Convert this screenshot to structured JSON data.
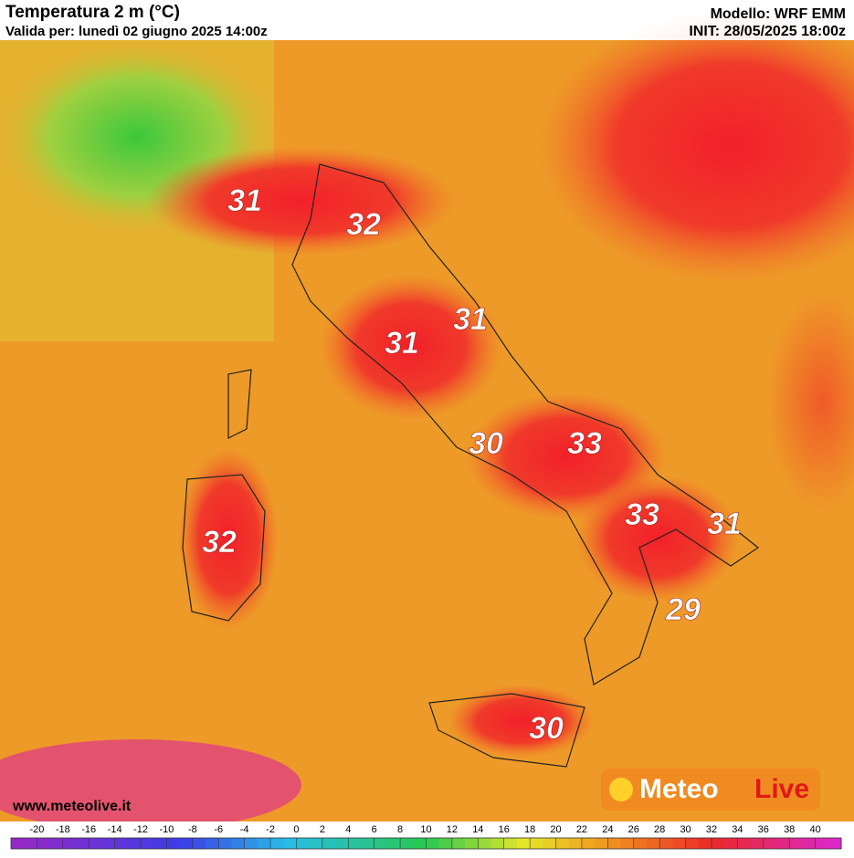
{
  "header": {
    "title": "Temperatura 2 m (°C)",
    "valid": "Valida per: lunedì 02 giugno 2025 14:00z",
    "model": "Modello: WRF EMM",
    "init": "INIT: 28/05/2025 18:00z"
  },
  "map": {
    "labels": [
      "31",
      "32",
      "31",
      "31",
      "30",
      "33",
      "33",
      "31",
      "32",
      "29",
      "30"
    ]
  },
  "footer": {
    "website": "www.meteolive.it",
    "logo_left": "Meteo",
    "logo_right": "Live"
  },
  "scale": {
    "lim": [
      -22,
      42
    ],
    "ticks": [
      -20,
      -18,
      -16,
      -14,
      -12,
      -10,
      -8,
      -6,
      -4,
      -2,
      0,
      2,
      4,
      6,
      8,
      10,
      12,
      14,
      16,
      18,
      20,
      22,
      24,
      26,
      28,
      30,
      32,
      34,
      36,
      38,
      40
    ]
  }
}
